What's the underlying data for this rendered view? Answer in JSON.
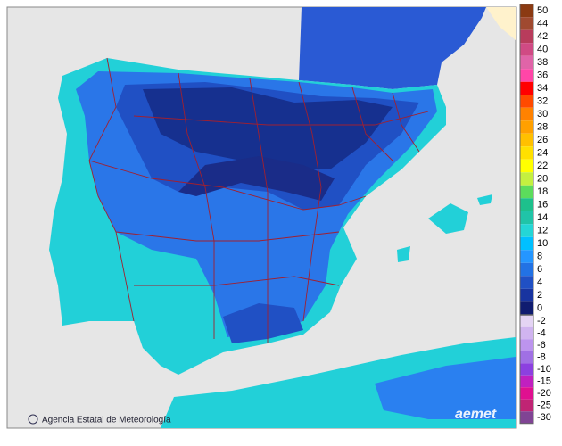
{
  "legend": {
    "positive": [
      {
        "label": 50,
        "color": "#8b3a12"
      },
      {
        "label": 44,
        "color": "#a04a30"
      },
      {
        "label": 42,
        "color": "#b83c5c"
      },
      {
        "label": 40,
        "color": "#d04a84"
      },
      {
        "label": 38,
        "color": "#e064a8"
      },
      {
        "label": 36,
        "color": "#ff46a8"
      },
      {
        "label": 34,
        "color": "#ff0000"
      },
      {
        "label": 32,
        "color": "#ff4a00"
      },
      {
        "label": 30,
        "color": "#ff8200"
      },
      {
        "label": 28,
        "color": "#ffa000"
      },
      {
        "label": 26,
        "color": "#ffc000"
      },
      {
        "label": 24,
        "color": "#ffe000"
      },
      {
        "label": 22,
        "color": "#ffff00"
      },
      {
        "label": 20,
        "color": "#c4f040"
      },
      {
        "label": 18,
        "color": "#5cdc5c"
      },
      {
        "label": 16,
        "color": "#1ec08c"
      },
      {
        "label": 14,
        "color": "#20c4a8"
      },
      {
        "label": 12,
        "color": "#24d6d6"
      },
      {
        "label": 10,
        "color": "#00c0ff"
      },
      {
        "label": 8,
        "color": "#2496ff"
      },
      {
        "label": 6,
        "color": "#2272e4"
      },
      {
        "label": 4,
        "color": "#2050c4"
      },
      {
        "label": 2,
        "color": "#1834a0"
      },
      {
        "label": 0,
        "color": "#101c70"
      }
    ],
    "negative": [
      {
        "label": -2,
        "color": "#e4d4f4"
      },
      {
        "label": -4,
        "color": "#d0b4f0"
      },
      {
        "label": -6,
        "color": "#bc94ee"
      },
      {
        "label": -8,
        "color": "#a070e4"
      },
      {
        "label": -10,
        "color": "#8c40e0"
      },
      {
        "label": -15,
        "color": "#c020c0"
      },
      {
        "label": -20,
        "color": "#e01090"
      },
      {
        "label": -25,
        "color": "#c02474"
      },
      {
        "label": -30,
        "color": "#804494"
      }
    ]
  },
  "credit": "Agencia Estatal de Meteorología",
  "logo": "aemet"
}
